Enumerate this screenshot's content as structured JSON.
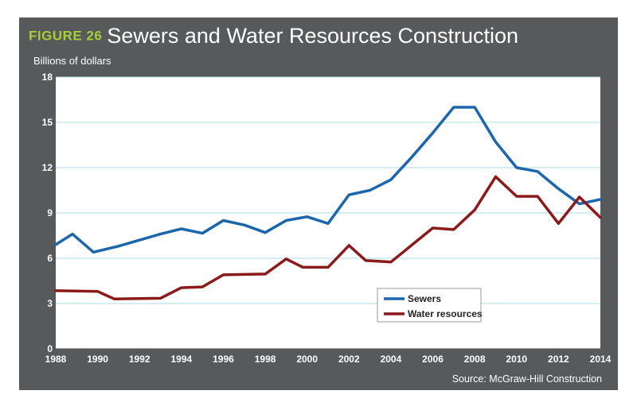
{
  "figure": {
    "label": "FIGURE 26",
    "title": "Sewers and Water Resources Construction"
  },
  "source": "Source: McGraw-Hill Construction",
  "colors": {
    "frame": "#58595b",
    "sewers": "#1b66ad",
    "water": "#8b1a1a",
    "grid": "#a8dde8",
    "accent": "#a6ce39"
  },
  "chart_data": {
    "type": "line",
    "title": "Sewers and Water Resources Construction",
    "xlabel": "",
    "ylabel": "Billions of dollars",
    "xlim": [
      1988,
      2014
    ],
    "ylim": [
      0,
      18
    ],
    "xticks": [
      "1988",
      "1990",
      "1992",
      "1994",
      "1996",
      "1998",
      "2000",
      "2002",
      "2004",
      "2006",
      "2008",
      "2010",
      "2012",
      "2014"
    ],
    "yticks": [
      "0",
      "3",
      "6",
      "9",
      "12",
      "15",
      "18"
    ],
    "legend_position": "bottom-center",
    "series": [
      {
        "name": "Sewers",
        "color": "#1b66ad",
        "x": [
          1988,
          1988.8,
          1989.8,
          1991,
          1992,
          1993,
          1994,
          1995,
          1996,
          1997,
          1998,
          1999,
          2000,
          2001,
          2002,
          2003,
          2004,
          2005,
          2006,
          2007,
          2008,
          2009,
          2010,
          2011,
          2012,
          2013,
          2014
        ],
        "values": [
          6.9,
          7.6,
          6.4,
          6.8,
          7.2,
          7.6,
          7.95,
          7.65,
          8.5,
          8.2,
          7.7,
          8.5,
          8.75,
          8.3,
          10.2,
          10.5,
          11.2,
          12.7,
          14.3,
          16.0,
          16.0,
          13.7,
          12.0,
          11.75,
          10.6,
          9.6,
          9.9
        ]
      },
      {
        "name": "Water resources",
        "color": "#8b1a1a",
        "x": [
          1988,
          1990,
          1990.8,
          1993,
          1994,
          1995,
          1996,
          1998,
          1999,
          1999.8,
          2001,
          2002,
          2002.8,
          2004,
          2006,
          2007,
          2008,
          2009,
          2010,
          2011,
          2012,
          2013,
          2014
        ],
        "values": [
          3.85,
          3.8,
          3.3,
          3.35,
          4.05,
          4.1,
          4.9,
          4.95,
          5.95,
          5.4,
          5.4,
          6.85,
          5.85,
          5.75,
          8.0,
          7.9,
          9.2,
          11.4,
          10.1,
          10.1,
          8.3,
          10.05,
          8.7
        ]
      }
    ]
  }
}
